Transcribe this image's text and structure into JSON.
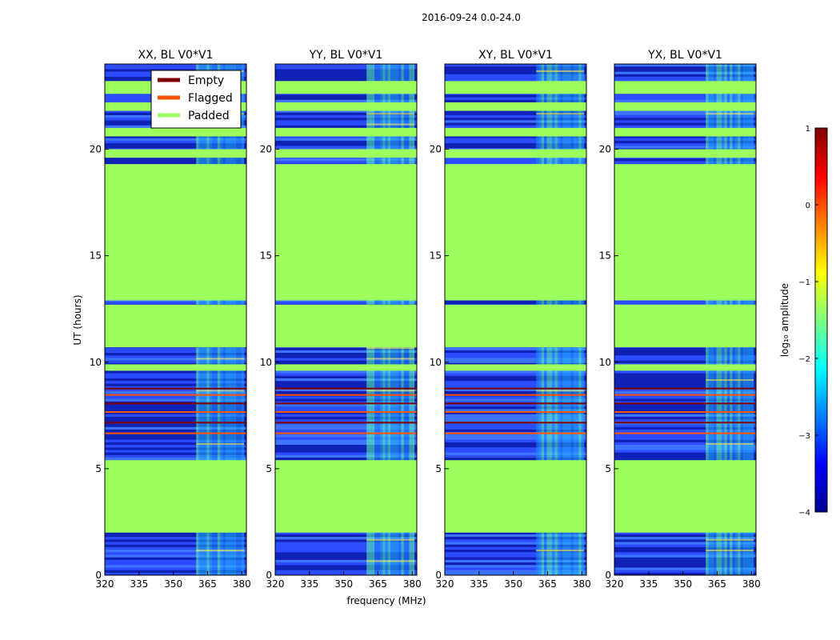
{
  "suptitle": "2016-09-24 0.0-24.0",
  "colors": {
    "padded": "#9cff5e",
    "flagged": "#ff5500",
    "empty": "#800000",
    "noise_dark": "#0a1aa8",
    "noise_mid": "#2b4cff",
    "noise_light": "#21b8ff"
  },
  "chart_data": [
    {
      "type": "heatmap",
      "title": "XX, BL V0*V1",
      "xlabel": "",
      "ylabel": "UT (hours)",
      "xlim": [
        320,
        382
      ],
      "ylim": [
        0,
        24
      ],
      "xticks": [
        "320",
        "335",
        "350",
        "365",
        "380"
      ],
      "yticks": [
        "0",
        "5",
        "10",
        "15",
        "20"
      ],
      "padded_ut_ranges": [
        [
          2.0,
          5.4
        ],
        [
          9.6,
          9.9
        ],
        [
          10.7,
          12.7
        ],
        [
          12.9,
          19.3
        ],
        [
          19.6,
          20.0
        ],
        [
          20.6,
          21.0
        ],
        [
          21.8,
          22.2
        ],
        [
          22.6,
          23.2
        ]
      ],
      "bright_freq_ranges_mhz": [
        [
          360,
          381
        ]
      ]
    },
    {
      "type": "heatmap",
      "title": "YY, BL V0*V1",
      "xlabel": "frequency (MHz)",
      "ylabel": "",
      "xlim": [
        320,
        382
      ],
      "ylim": [
        0,
        24
      ],
      "xticks": [
        "320",
        "335",
        "350",
        "365",
        "380"
      ],
      "yticks": [
        "0",
        "5",
        "10",
        "15",
        "20"
      ],
      "padded_ut_ranges": [
        [
          2.0,
          5.4
        ],
        [
          9.6,
          9.9
        ],
        [
          10.7,
          12.7
        ],
        [
          12.9,
          19.3
        ],
        [
          19.6,
          20.0
        ],
        [
          20.6,
          21.0
        ],
        [
          21.8,
          22.2
        ],
        [
          22.6,
          23.2
        ]
      ],
      "bright_freq_ranges_mhz": [
        [
          360,
          381
        ]
      ]
    },
    {
      "type": "heatmap",
      "title": "XY, BL V0*V1",
      "xlabel": "",
      "ylabel": "",
      "xlim": [
        320,
        382
      ],
      "ylim": [
        0,
        24
      ],
      "xticks": [
        "320",
        "335",
        "350",
        "365",
        "380"
      ],
      "yticks": [
        "0",
        "5",
        "10",
        "15",
        "20"
      ],
      "padded_ut_ranges": [
        [
          2.0,
          5.4
        ],
        [
          9.6,
          9.9
        ],
        [
          10.7,
          12.7
        ],
        [
          12.9,
          19.3
        ],
        [
          19.6,
          20.0
        ],
        [
          20.6,
          21.0
        ],
        [
          21.8,
          22.2
        ],
        [
          22.6,
          23.2
        ]
      ],
      "bright_freq_ranges_mhz": [
        [
          360,
          381
        ]
      ]
    },
    {
      "type": "heatmap",
      "title": "YX, BL V0*V1",
      "xlabel": "",
      "ylabel": "",
      "xlim": [
        320,
        382
      ],
      "ylim": [
        0,
        24
      ],
      "xticks": [
        "320",
        "335",
        "350",
        "365",
        "380"
      ],
      "yticks": [
        "0",
        "5",
        "10",
        "15",
        "20"
      ],
      "padded_ut_ranges": [
        [
          2.0,
          5.4
        ],
        [
          9.6,
          9.9
        ],
        [
          10.7,
          12.7
        ],
        [
          12.9,
          19.3
        ],
        [
          19.6,
          20.0
        ],
        [
          20.6,
          21.0
        ],
        [
          21.8,
          22.2
        ],
        [
          22.6,
          23.2
        ]
      ],
      "bright_freq_ranges_mhz": [
        [
          360,
          381
        ]
      ]
    }
  ],
  "legend": [
    {
      "label": "Empty",
      "color": "#800000"
    },
    {
      "label": "Flagged",
      "color": "#ff5500"
    },
    {
      "label": "Padded",
      "color": "#9cff5e"
    }
  ],
  "colorbar": {
    "label": "log₁₀ amplitude",
    "range": [
      -4,
      1
    ],
    "ticks": [
      "1",
      "0",
      "−1",
      "−2",
      "−3",
      "−4"
    ]
  }
}
